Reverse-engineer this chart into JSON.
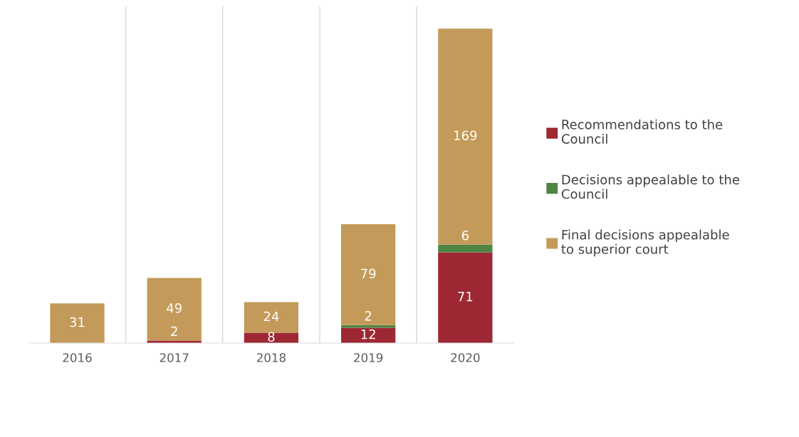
{
  "chart_data": {
    "type": "bar",
    "stacked": true,
    "categories": [
      "2016",
      "2017",
      "2018",
      "2019",
      "2020"
    ],
    "series": [
      {
        "name": "Recommendations to the Council",
        "color": "#9e2734",
        "values": [
          null,
          2,
          8,
          12,
          71
        ]
      },
      {
        "name": "Decisions appealable to the Council",
        "color": "#4e8542",
        "values": [
          null,
          null,
          null,
          2,
          6
        ]
      },
      {
        "name": "Final decisions appealable to superior court",
        "color": "#c39a5a",
        "values": [
          31,
          49,
          24,
          79,
          169
        ]
      }
    ],
    "data_labels": true,
    "grid": "x",
    "legend": "right",
    "tick_labels": "x"
  }
}
